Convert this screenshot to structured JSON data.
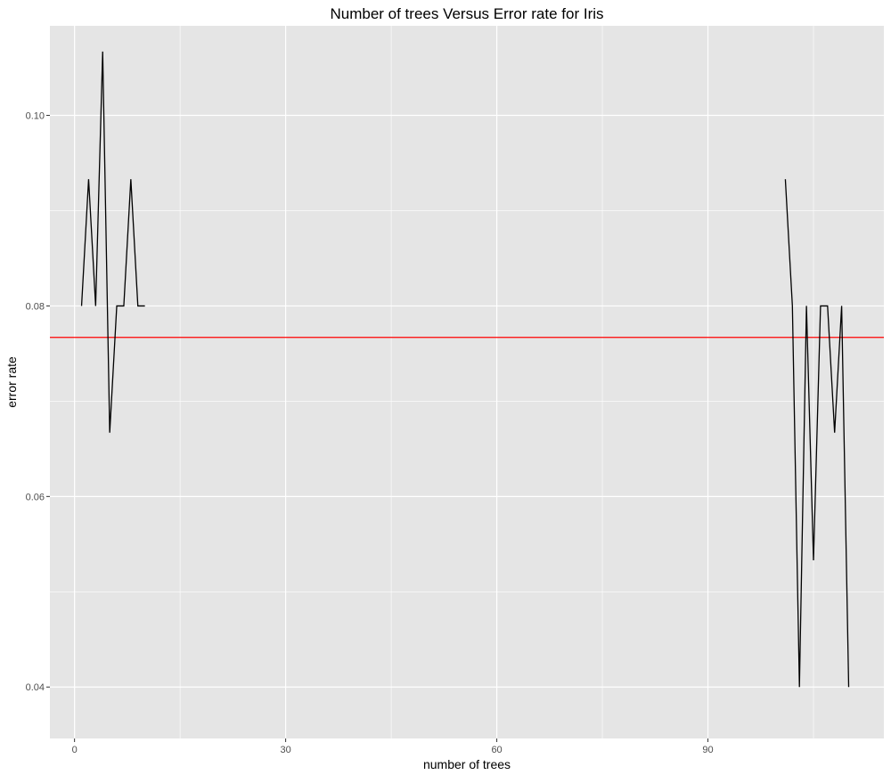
{
  "chart_data": {
    "type": "line",
    "title": "Number of trees Versus Error rate for Iris",
    "xlabel": "number of trees",
    "ylabel": "error rate",
    "xlim": [
      -3.5,
      115
    ],
    "ylim": [
      0.0346,
      0.1094
    ],
    "x_ticks": [
      0,
      30,
      60,
      90
    ],
    "x_minor_ticks": [
      15,
      45,
      75,
      105
    ],
    "y_ticks": [
      0.04,
      0.06,
      0.08,
      0.1
    ],
    "y_minor_ticks": [
      0.05,
      0.07,
      0.09
    ],
    "y_tick_labels": [
      "0.04",
      "0.06",
      "0.08",
      "0.10"
    ],
    "series": [
      {
        "color": "#000000",
        "segments": [
          {
            "x": [
              1,
              2,
              3,
              4,
              5,
              6,
              7,
              8,
              9,
              10
            ],
            "y": [
              0.08,
              0.0933,
              0.08,
              0.1067,
              0.0667,
              0.08,
              0.08,
              0.0933,
              0.08,
              0.08
            ]
          },
          {
            "x": [
              101,
              102,
              103,
              104,
              105,
              106,
              107,
              108,
              109,
              110
            ],
            "y": [
              0.0933,
              0.08,
              0.04,
              0.08,
              0.0533,
              0.08,
              0.08,
              0.0667,
              0.08,
              0.04
            ]
          }
        ]
      }
    ],
    "hline": {
      "y": 0.0767,
      "color": "#ff0000"
    },
    "grid": true,
    "panel_background": "#e5e5e5",
    "grid_color": "#ffffff"
  }
}
